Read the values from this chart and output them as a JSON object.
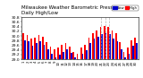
{
  "title": "Milwaukee Weather Barometric Pressure",
  "subtitle": "Daily High/Low",
  "bar_width": 0.4,
  "legend_high": "High",
  "legend_low": "Low",
  "color_high": "#ff0000",
  "color_low": "#0000cc",
  "color_dashed": "#aaaaaa",
  "background_color": "#ffffff",
  "ylim": [
    29.0,
    30.8
  ],
  "yticks": [
    29.0,
    29.2,
    29.4,
    29.6,
    29.8,
    30.0,
    30.2,
    30.4,
    30.6,
    30.8
  ],
  "ylabel_fontsize": 3.2,
  "xlabel_fontsize": 2.8,
  "title_fontsize": 4.0,
  "days": [
    "1",
    "2",
    "3",
    "4",
    "5",
    "6",
    "7",
    "8",
    "9",
    "10",
    "11",
    "12",
    "13",
    "14",
    "15",
    "16",
    "17",
    "18",
    "19",
    "20",
    "21",
    "22",
    "23",
    "24",
    "25",
    "26",
    "27",
    "28",
    "29",
    "30"
  ],
  "highs": [
    30.12,
    30.05,
    29.88,
    29.92,
    30.02,
    29.95,
    29.72,
    29.56,
    29.42,
    29.52,
    29.62,
    29.68,
    29.56,
    29.32,
    29.22,
    29.52,
    29.62,
    29.92,
    30.12,
    30.22,
    30.38,
    30.42,
    30.38,
    30.22,
    30.12,
    29.72,
    29.32,
    29.52,
    29.82,
    29.92
  ],
  "lows": [
    29.82,
    29.78,
    29.58,
    29.68,
    29.78,
    29.62,
    29.42,
    29.22,
    29.08,
    29.18,
    29.32,
    29.42,
    29.28,
    29.08,
    29.02,
    29.22,
    29.38,
    29.68,
    29.88,
    29.98,
    30.08,
    30.12,
    30.08,
    29.88,
    29.78,
    29.42,
    29.08,
    29.22,
    29.58,
    29.68
  ],
  "dashed_lines": [
    20,
    21,
    22
  ],
  "n_days": 30
}
